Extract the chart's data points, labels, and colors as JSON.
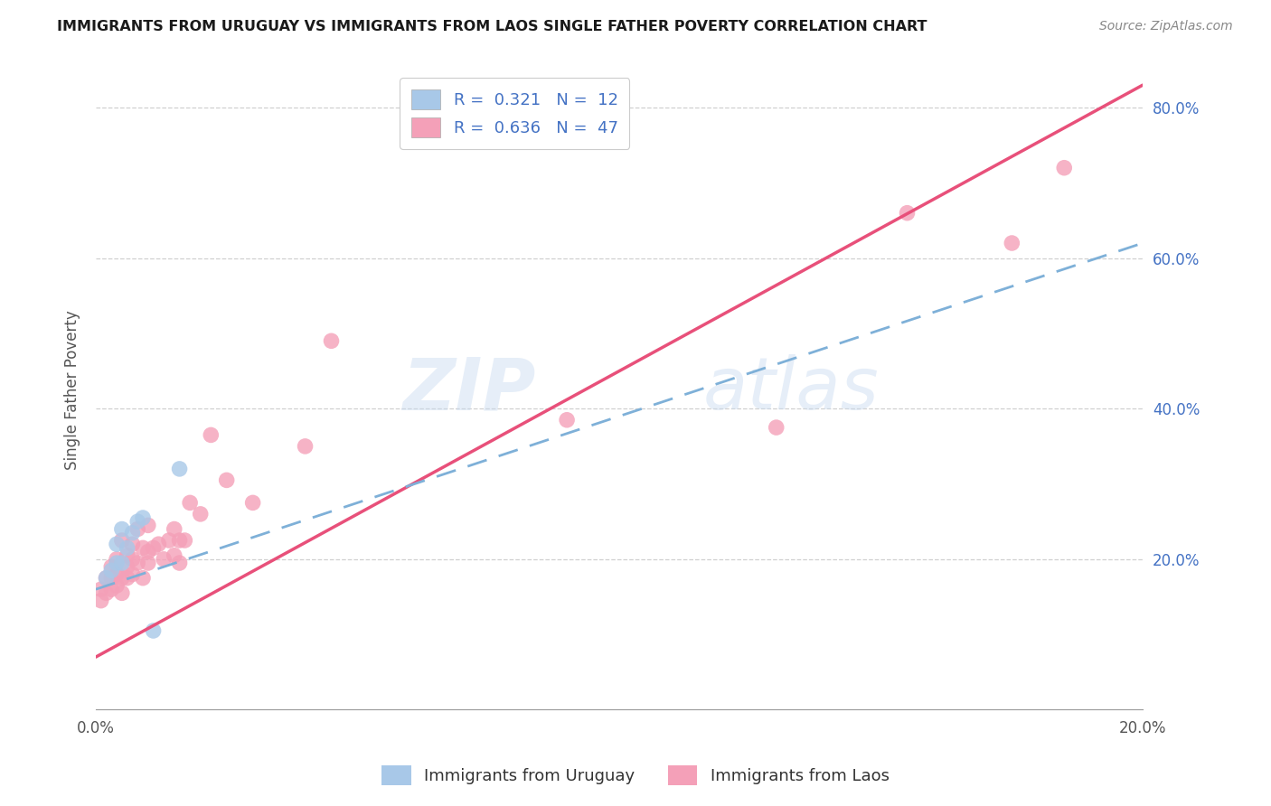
{
  "title": "IMMIGRANTS FROM URUGUAY VS IMMIGRANTS FROM LAOS SINGLE FATHER POVERTY CORRELATION CHART",
  "source": "Source: ZipAtlas.com",
  "ylabel": "Single Father Poverty",
  "xlim": [
    0.0,
    0.2
  ],
  "ylim": [
    0.0,
    0.85
  ],
  "x_ticks": [
    0.0,
    0.04,
    0.08,
    0.12,
    0.16,
    0.2
  ],
  "x_tick_labels": [
    "0.0%",
    "",
    "",
    "",
    "",
    "20.0%"
  ],
  "y_ticks_right": [
    0.2,
    0.4,
    0.6,
    0.8
  ],
  "y_tick_labels_right": [
    "20.0%",
    "40.0%",
    "60.0%",
    "80.0%"
  ],
  "r_uruguay": 0.321,
  "n_uruguay": 12,
  "r_laos": 0.636,
  "n_laos": 47,
  "color_uruguay": "#a8c8e8",
  "color_laos": "#f4a0b8",
  "color_line_uruguay": "#7eb0d8",
  "color_line_laos": "#e8507a",
  "watermark_zip": "ZIP",
  "watermark_atlas": "atlas",
  "line_laos_x0": 0.0,
  "line_laos_y0": 0.07,
  "line_laos_x1": 0.2,
  "line_laos_y1": 0.83,
  "line_uru_x0": 0.0,
  "line_uru_y0": 0.16,
  "line_uru_x1": 0.2,
  "line_uru_y1": 0.62,
  "uruguay_x": [
    0.002,
    0.003,
    0.004,
    0.004,
    0.005,
    0.005,
    0.006,
    0.007,
    0.008,
    0.009,
    0.011,
    0.016
  ],
  "uruguay_y": [
    0.175,
    0.185,
    0.195,
    0.22,
    0.195,
    0.24,
    0.215,
    0.235,
    0.25,
    0.255,
    0.105,
    0.32
  ],
  "laos_x": [
    0.001,
    0.001,
    0.002,
    0.002,
    0.003,
    0.003,
    0.003,
    0.004,
    0.004,
    0.004,
    0.005,
    0.005,
    0.005,
    0.006,
    0.006,
    0.006,
    0.007,
    0.007,
    0.007,
    0.008,
    0.008,
    0.009,
    0.009,
    0.01,
    0.01,
    0.01,
    0.011,
    0.012,
    0.013,
    0.014,
    0.015,
    0.015,
    0.016,
    0.016,
    0.017,
    0.018,
    0.02,
    0.022,
    0.025,
    0.03,
    0.04,
    0.045,
    0.09,
    0.13,
    0.155,
    0.175,
    0.185
  ],
  "laos_y": [
    0.145,
    0.16,
    0.155,
    0.175,
    0.16,
    0.175,
    0.19,
    0.165,
    0.18,
    0.2,
    0.155,
    0.175,
    0.225,
    0.175,
    0.19,
    0.205,
    0.18,
    0.2,
    0.22,
    0.195,
    0.24,
    0.175,
    0.215,
    0.195,
    0.21,
    0.245,
    0.215,
    0.22,
    0.2,
    0.225,
    0.205,
    0.24,
    0.195,
    0.225,
    0.225,
    0.275,
    0.26,
    0.365,
    0.305,
    0.275,
    0.35,
    0.49,
    0.385,
    0.375,
    0.66,
    0.62,
    0.72
  ]
}
